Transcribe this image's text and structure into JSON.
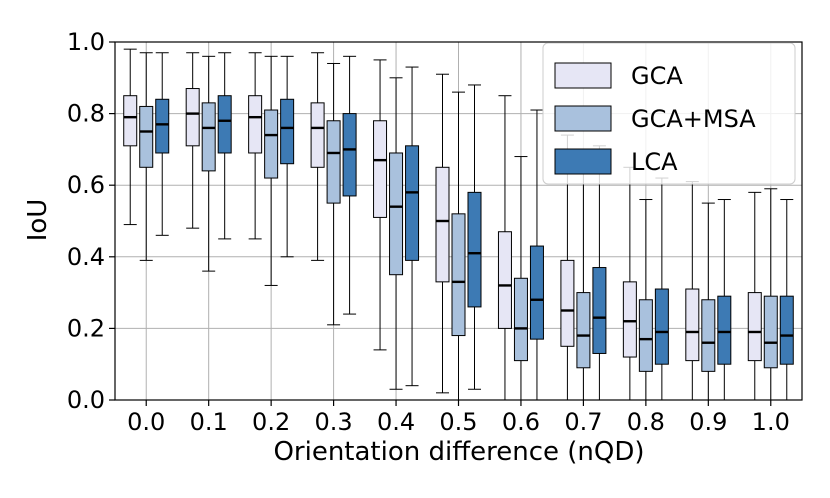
{
  "chart_data": {
    "type": "boxplot",
    "title": "",
    "xlabel": "Orientation difference (nQD)",
    "ylabel": "IoU",
    "ylim": [
      0.0,
      1.0
    ],
    "grid": true,
    "legend_position": "top-right",
    "categories": [
      "0.0",
      "0.1",
      "0.2",
      "0.3",
      "0.4",
      "0.5",
      "0.6",
      "0.7",
      "0.8",
      "0.9",
      "1.0"
    ],
    "y_ticks": [
      "0.0",
      "0.2",
      "0.4",
      "0.6",
      "0.8",
      "1.0"
    ],
    "series": [
      {
        "name": "GCA",
        "color": "#e6e6f5",
        "boxes": [
          {
            "whislo": 0.49,
            "q1": 0.71,
            "med": 0.79,
            "q3": 0.85,
            "whishi": 0.98
          },
          {
            "whislo": 0.48,
            "q1": 0.71,
            "med": 0.8,
            "q3": 0.87,
            "whishi": 0.97
          },
          {
            "whislo": 0.45,
            "q1": 0.69,
            "med": 0.79,
            "q3": 0.85,
            "whishi": 0.97
          },
          {
            "whislo": 0.39,
            "q1": 0.65,
            "med": 0.76,
            "q3": 0.83,
            "whishi": 0.97
          },
          {
            "whislo": 0.14,
            "q1": 0.51,
            "med": 0.67,
            "q3": 0.78,
            "whishi": 0.95
          },
          {
            "whislo": 0.02,
            "q1": 0.33,
            "med": 0.5,
            "q3": 0.65,
            "whishi": 0.91
          },
          {
            "whislo": 0.0,
            "q1": 0.2,
            "med": 0.32,
            "q3": 0.47,
            "whishi": 0.85
          },
          {
            "whislo": 0.0,
            "q1": 0.15,
            "med": 0.25,
            "q3": 0.39,
            "whishi": 0.74
          },
          {
            "whislo": 0.0,
            "q1": 0.12,
            "med": 0.22,
            "q3": 0.33,
            "whishi": 0.65
          },
          {
            "whislo": 0.0,
            "q1": 0.11,
            "med": 0.19,
            "q3": 0.31,
            "whishi": 0.61
          },
          {
            "whislo": 0.0,
            "q1": 0.11,
            "med": 0.19,
            "q3": 0.3,
            "whishi": 0.58
          }
        ]
      },
      {
        "name": "GCA+MSA",
        "color": "#a9c1dd",
        "boxes": [
          {
            "whislo": 0.39,
            "q1": 0.65,
            "med": 0.75,
            "q3": 0.82,
            "whishi": 0.97
          },
          {
            "whislo": 0.36,
            "q1": 0.64,
            "med": 0.76,
            "q3": 0.83,
            "whishi": 0.96
          },
          {
            "whislo": 0.32,
            "q1": 0.62,
            "med": 0.74,
            "q3": 0.81,
            "whishi": 0.96
          },
          {
            "whislo": 0.21,
            "q1": 0.55,
            "med": 0.69,
            "q3": 0.78,
            "whishi": 0.94
          },
          {
            "whislo": 0.03,
            "q1": 0.35,
            "med": 0.54,
            "q3": 0.69,
            "whishi": 0.9
          },
          {
            "whislo": 0.0,
            "q1": 0.18,
            "med": 0.33,
            "q3": 0.52,
            "whishi": 0.86
          },
          {
            "whislo": 0.0,
            "q1": 0.11,
            "med": 0.2,
            "q3": 0.34,
            "whishi": 0.68
          },
          {
            "whislo": 0.0,
            "q1": 0.09,
            "med": 0.18,
            "q3": 0.3,
            "whishi": 0.67
          },
          {
            "whislo": 0.0,
            "q1": 0.08,
            "med": 0.17,
            "q3": 0.28,
            "whishi": 0.56
          },
          {
            "whislo": 0.0,
            "q1": 0.08,
            "med": 0.16,
            "q3": 0.28,
            "whishi": 0.55
          },
          {
            "whislo": 0.0,
            "q1": 0.09,
            "med": 0.16,
            "q3": 0.29,
            "whishi": 0.59
          }
        ]
      },
      {
        "name": "LCA",
        "color": "#3d7ab4",
        "boxes": [
          {
            "whislo": 0.46,
            "q1": 0.69,
            "med": 0.77,
            "q3": 0.84,
            "whishi": 0.97
          },
          {
            "whislo": 0.45,
            "q1": 0.69,
            "med": 0.78,
            "q3": 0.85,
            "whishi": 0.97
          },
          {
            "whislo": 0.4,
            "q1": 0.66,
            "med": 0.76,
            "q3": 0.84,
            "whishi": 0.96
          },
          {
            "whislo": 0.24,
            "q1": 0.57,
            "med": 0.7,
            "q3": 0.8,
            "whishi": 0.96
          },
          {
            "whislo": 0.04,
            "q1": 0.39,
            "med": 0.58,
            "q3": 0.71,
            "whishi": 0.93
          },
          {
            "whislo": 0.03,
            "q1": 0.26,
            "med": 0.41,
            "q3": 0.58,
            "whishi": 0.88
          },
          {
            "whislo": 0.0,
            "q1": 0.17,
            "med": 0.28,
            "q3": 0.43,
            "whishi": 0.81
          },
          {
            "whislo": 0.0,
            "q1": 0.13,
            "med": 0.23,
            "q3": 0.37,
            "whishi": 0.71
          },
          {
            "whislo": 0.0,
            "q1": 0.1,
            "med": 0.19,
            "q3": 0.31,
            "whishi": 0.62
          },
          {
            "whislo": 0.0,
            "q1": 0.1,
            "med": 0.19,
            "q3": 0.29,
            "whishi": 0.56
          },
          {
            "whislo": 0.0,
            "q1": 0.1,
            "med": 0.18,
            "q3": 0.29,
            "whishi": 0.56
          }
        ]
      }
    ]
  }
}
